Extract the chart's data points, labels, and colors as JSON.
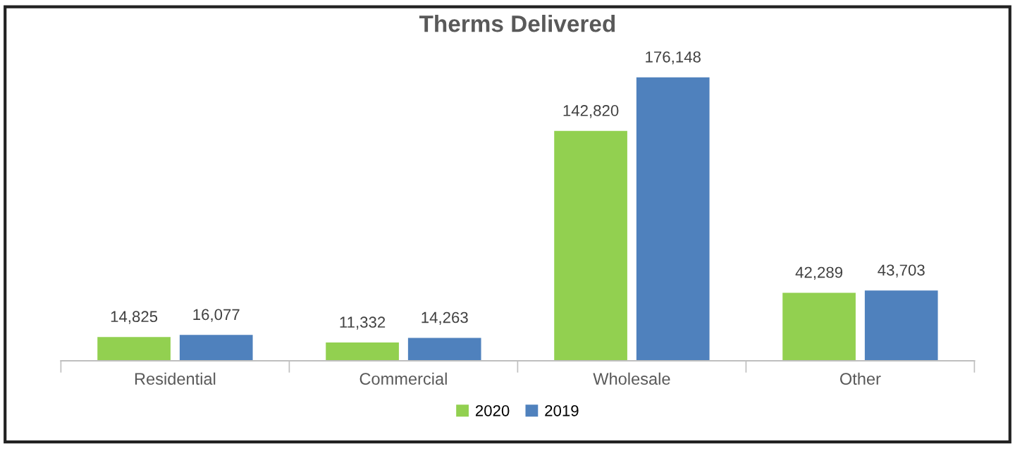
{
  "chart_data": {
    "type": "bar",
    "title": "Therms Delivered",
    "categories": [
      "Residential",
      "Commercial",
      "Wholesale",
      "Other"
    ],
    "series": [
      {
        "name": "2020",
        "color": "#92d050",
        "values": [
          14825,
          11332,
          142820,
          42289
        ],
        "value_labels": [
          "14,825",
          "11,332",
          "142,820",
          "42,289"
        ]
      },
      {
        "name": "2019",
        "color": "#4f81bd",
        "values": [
          16077,
          14263,
          176148,
          43703
        ],
        "value_labels": [
          "16,077",
          "14,263",
          "176,148",
          "43,703"
        ]
      }
    ],
    "legend": "bottom"
  }
}
